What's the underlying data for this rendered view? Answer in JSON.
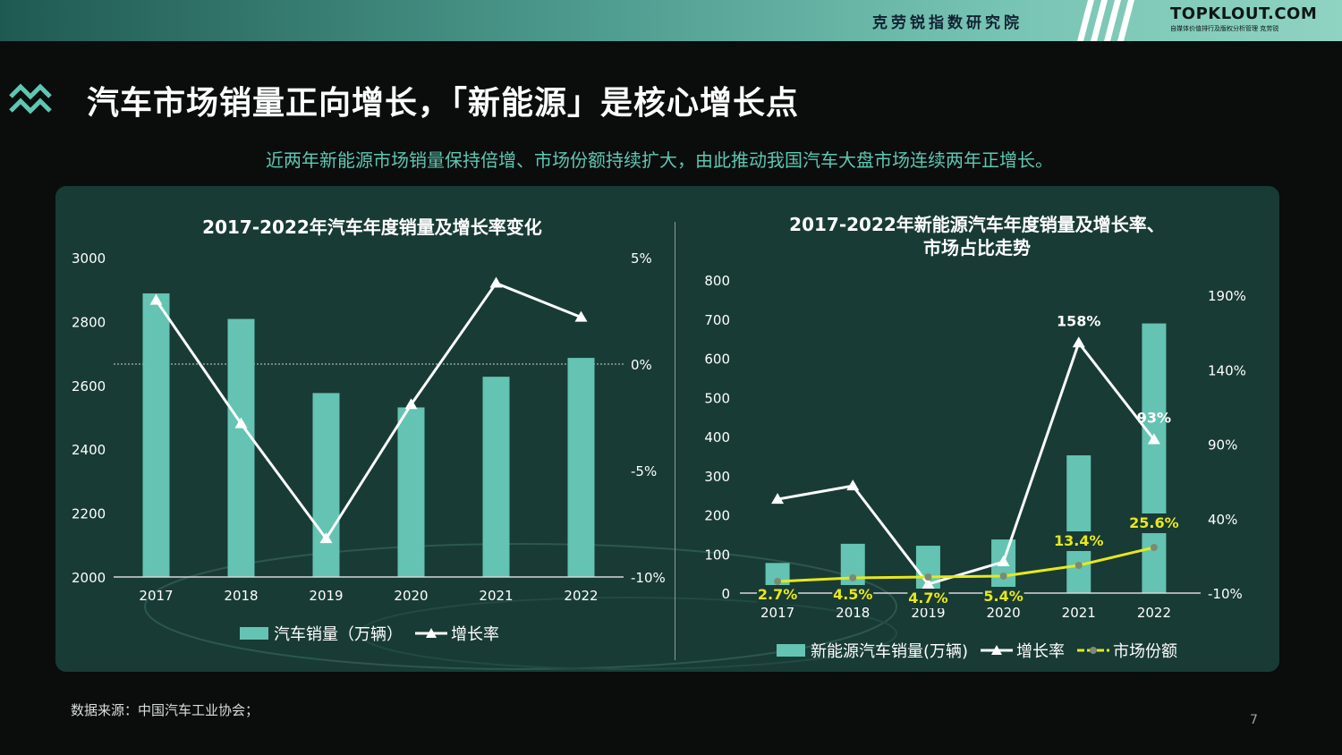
{
  "header": {
    "brand_cn": "克劳锐指数研究院",
    "logo": "TOPKLOUT.COM",
    "logo_sub": "自媒体价值排行及版权分析管理 克劳锐"
  },
  "page": {
    "title": "汽车市场销量正向增长，「新能源」是核心增长点",
    "subtitle": "近两年新能源市场销量保持倍增、市场份额持续扩大，由此推动我国汽车大盘市场连续两年正增长。",
    "source": "数据来源：中国汽车工业协会；",
    "page_number": "7"
  },
  "colors": {
    "accent": "#64c3b2",
    "share_line": "#e8e81a",
    "subtitle": "#5ec7b2",
    "panel": "#183b35"
  },
  "icons": {
    "title_icon": "double-chevron-up-icon"
  },
  "chart_data": [
    {
      "type": "bar+line",
      "title": "2017-2022年汽车年度销量及增长率变化",
      "categories": [
        "2017",
        "2018",
        "2019",
        "2020",
        "2021",
        "2022"
      ],
      "y_left": {
        "ticks": [
          "2000",
          "2200",
          "2400",
          "2600",
          "2800",
          "3000"
        ],
        "range": [
          2000,
          3000
        ]
      },
      "y_right": {
        "ticks": [
          "-10%",
          "-5%",
          "0%",
          "5%"
        ],
        "range": [
          -10,
          5
        ]
      },
      "series": [
        {
          "name": "汽车销量（万辆）",
          "kind": "bar",
          "axis": "left",
          "values": [
            2888,
            2808,
            2576,
            2531,
            2627,
            2686
          ]
        },
        {
          "name": "增长率",
          "kind": "line",
          "axis": "right",
          "values": [
            3.0,
            -2.8,
            -8.2,
            -1.9,
            3.8,
            2.2
          ]
        }
      ],
      "legend": "bottom",
      "reference_line": "0%"
    },
    {
      "type": "bar+line",
      "title_line1": "2017-2022年新能源汽车年度销量及增长率、",
      "title_line2": "市场占比走势",
      "categories": [
        "2017",
        "2018",
        "2019",
        "2020",
        "2021",
        "2022"
      ],
      "y_left": {
        "ticks": [
          "0",
          "100",
          "200",
          "300",
          "400",
          "500",
          "600",
          "700",
          "800"
        ],
        "range": [
          0,
          800
        ]
      },
      "y_right": {
        "ticks": [
          "-10%",
          "40%",
          "90%",
          "140%",
          "190%"
        ],
        "range": [
          -10,
          190
        ]
      },
      "series": [
        {
          "name": "新能源汽车销量(万辆)",
          "kind": "bar",
          "axis": "left",
          "values": [
            77,
            126,
            121,
            137,
            352,
            689
          ]
        },
        {
          "name": "增长率",
          "kind": "line",
          "axis": "right",
          "values": [
            53,
            62,
            -4,
            11,
            158,
            93
          ]
        },
        {
          "name": "市场份额",
          "kind": "line",
          "axis": "right",
          "values": [
            2.7,
            4.5,
            4.7,
            5.4,
            13.4,
            25.6
          ],
          "labels": [
            "2.7%",
            "4.5%",
            "4.7%",
            "5.4%",
            "13.4%",
            "25.6%"
          ]
        }
      ],
      "growth_labels": [
        "158%",
        "93%"
      ],
      "legend": "bottom"
    }
  ]
}
